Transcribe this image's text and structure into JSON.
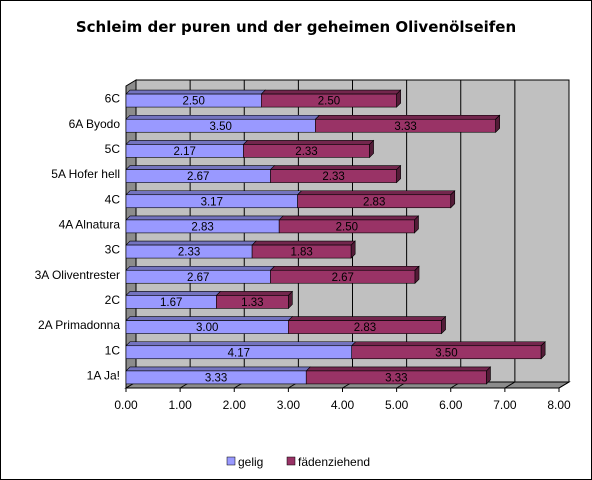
{
  "chart_data": {
    "type": "bar",
    "orientation": "horizontal",
    "stacked": true,
    "title": "Schleim der puren und der geheimen Olivenölseifen",
    "categories": [
      "1A Ja!",
      "1C",
      "2A Primadonna",
      "2C",
      "3A Oliventrester",
      "3C",
      "4A Alnatura",
      "4C",
      "5A Hofer hell",
      "5C",
      "6A Byodo",
      "6C"
    ],
    "series": [
      {
        "name": "gelig",
        "color": "#9999ff",
        "values": [
          3.33,
          4.17,
          3.0,
          1.67,
          2.67,
          2.33,
          2.83,
          3.17,
          2.67,
          2.17,
          3.5,
          2.5
        ],
        "labels": [
          "3.33",
          "4.17",
          "3.00",
          "1.67",
          "2.67",
          "2.33",
          "2.83",
          "3.17",
          "2.67",
          "2.17",
          "3.50",
          "2.50"
        ]
      },
      {
        "name": "fädenziehend",
        "color": "#993366",
        "values": [
          3.33,
          3.5,
          2.83,
          1.33,
          2.67,
          1.83,
          2.5,
          2.83,
          2.33,
          2.33,
          3.33,
          2.5
        ],
        "labels": [
          "3.33",
          "3.50",
          "2.83",
          "1.33",
          "2.67",
          "1.83",
          "2.50",
          "2.83",
          "2.33",
          "2.33",
          "3.33",
          "2.50"
        ]
      }
    ],
    "xlim": [
      0,
      8
    ],
    "xticks": [
      "0.00",
      "1.00",
      "2.00",
      "3.00",
      "4.00",
      "5.00",
      "6.00",
      "7.00",
      "8.00"
    ],
    "grid": true,
    "background_color": "#c0c0c0",
    "legend_position": "bottom"
  }
}
